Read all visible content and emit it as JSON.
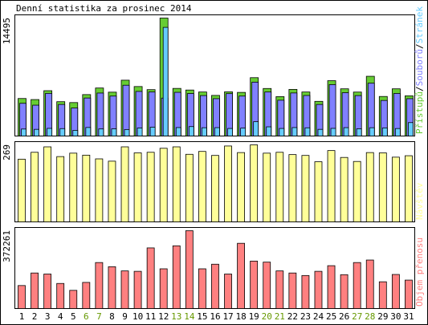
{
  "title": "Denní statistika za prosinec 2014",
  "colors": {
    "background": "#ffffff",
    "frame": "#000000",
    "hits": "#66cc33",
    "files": "#8080ff",
    "pages": "#66ccff",
    "visits": "#ffff99",
    "kbytes": "#ff8080",
    "weekday_text": "#000000",
    "weekend_text": "#669900"
  },
  "chart_data": [
    {
      "type": "bar",
      "panel": "top",
      "ymax_label": "14495",
      "ylim": [
        0,
        14495
      ],
      "legend": [
        "Přístupů",
        "Souborů",
        "Stránek"
      ],
      "categories": [
        "1",
        "2",
        "3",
        "4",
        "5",
        "6",
        "7",
        "8",
        "9",
        "10",
        "11",
        "12",
        "13",
        "14",
        "15",
        "16",
        "17",
        "18",
        "19",
        "20",
        "21",
        "22",
        "23",
        "24",
        "25",
        "26",
        "27",
        "28",
        "29",
        "30",
        "31"
      ],
      "series": [
        {
          "name": "Přístupů",
          "key": "hits",
          "values": [
            4610,
            4480,
            5570,
            4220,
            4110,
            5090,
            5900,
            5390,
            6860,
            6080,
            5700,
            14495,
            5850,
            5650,
            5410,
            4990,
            5430,
            5360,
            7170,
            5840,
            4840,
            5730,
            5410,
            4260,
            6800,
            5800,
            5400,
            7340,
            4860,
            5800,
            4940
          ]
        },
        {
          "name": "Souborů",
          "key": "files",
          "values": [
            4020,
            3790,
            5240,
            3880,
            3440,
            4670,
            5280,
            4910,
            6240,
            5480,
            5410,
            4660,
            5370,
            5220,
            4970,
            4590,
            5210,
            4910,
            6620,
            5410,
            4400,
            5290,
            4980,
            3880,
            6320,
            5320,
            4970,
            6490,
            4370,
            5230,
            4590
          ]
        },
        {
          "name": "Stránek",
          "key": "pages",
          "values": [
            860,
            820,
            940,
            910,
            700,
            1050,
            870,
            880,
            800,
            990,
            1090,
            13350,
            1040,
            1160,
            1020,
            1030,
            930,
            970,
            1760,
            1130,
            930,
            1040,
            1010,
            820,
            940,
            1030,
            890,
            1020,
            1000,
            920,
            1650
          ]
        }
      ]
    },
    {
      "type": "bar",
      "panel": "middle",
      "ymax_label": "269",
      "ylim": [
        0,
        269
      ],
      "legend": [
        "Návštěv"
      ],
      "categories": [
        "1",
        "2",
        "3",
        "4",
        "5",
        "6",
        "7",
        "8",
        "9",
        "10",
        "11",
        "12",
        "13",
        "14",
        "15",
        "16",
        "17",
        "18",
        "19",
        "20",
        "21",
        "22",
        "23",
        "24",
        "25",
        "26",
        "27",
        "28",
        "29",
        "30",
        "31"
      ],
      "series": [
        {
          "name": "Návštěv",
          "key": "visits",
          "values": [
            219,
            243,
            262,
            228,
            240,
            233,
            220,
            212,
            262,
            241,
            243,
            257,
            262,
            236,
            246,
            232,
            265,
            242,
            269,
            240,
            243,
            235,
            232,
            210,
            249,
            225,
            211,
            242,
            241,
            226,
            231
          ]
        }
      ]
    },
    {
      "type": "bar",
      "panel": "bottom",
      "ymax_label": "372261",
      "ylim": [
        0,
        372261
      ],
      "legend": [
        "Objem přenosu"
      ],
      "categories": [
        "1",
        "2",
        "3",
        "4",
        "5",
        "6",
        "7",
        "8",
        "9",
        "10",
        "11",
        "12",
        "13",
        "14",
        "15",
        "16",
        "17",
        "18",
        "19",
        "20",
        "21",
        "22",
        "23",
        "24",
        "25",
        "26",
        "27",
        "28",
        "29",
        "30",
        "31"
      ],
      "series": [
        {
          "name": "Objem přenosu",
          "key": "kbytes",
          "values": [
            110000,
            170000,
            165000,
            120000,
            87000,
            125000,
            220000,
            200000,
            180000,
            178000,
            290000,
            190000,
            300000,
            372261,
            190000,
            212000,
            165000,
            312000,
            227000,
            222000,
            180000,
            170000,
            158000,
            178000,
            205000,
            162000,
            220000,
            232000,
            128000,
            163000,
            136000
          ]
        }
      ]
    }
  ],
  "x_axis": {
    "labels": [
      "1",
      "2",
      "3",
      "4",
      "5",
      "6",
      "7",
      "8",
      "9",
      "10",
      "11",
      "12",
      "13",
      "14",
      "15",
      "16",
      "17",
      "18",
      "19",
      "20",
      "21",
      "22",
      "23",
      "24",
      "25",
      "26",
      "27",
      "28",
      "29",
      "30",
      "31"
    ],
    "weekend": [
      false,
      false,
      false,
      false,
      false,
      true,
      true,
      false,
      false,
      false,
      false,
      false,
      true,
      true,
      false,
      false,
      false,
      false,
      false,
      true,
      true,
      false,
      false,
      false,
      false,
      false,
      true,
      true,
      false,
      false,
      false
    ]
  }
}
